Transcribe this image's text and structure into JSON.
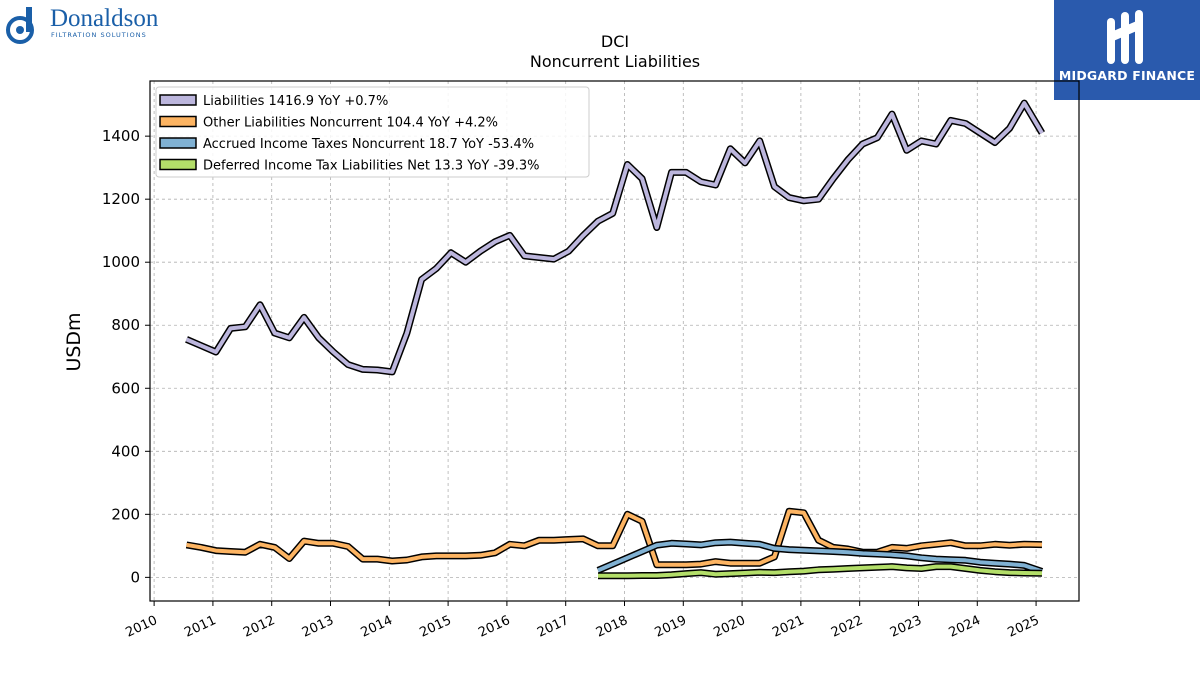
{
  "branding": {
    "left_logo_name": "Donaldson",
    "left_logo_tagline": "FILTRATION SOLUTIONS",
    "right_logo_name": "MIDGARD FINANCE",
    "left_color": "#1a5fa8",
    "right_bg": "#2a5aad"
  },
  "chart_data": {
    "type": "line",
    "title": "DCI",
    "subtitle": "Noncurrent  Liabilities",
    "ylabel": "USDm",
    "xlabel": "",
    "xlim": [
      2009.93,
      2025.73
    ],
    "ylim": [
      -75,
      1575
    ],
    "yticks": [
      0,
      200,
      400,
      600,
      800,
      1000,
      1200,
      1400
    ],
    "xticks": [
      2010,
      2011,
      2012,
      2013,
      2014,
      2015,
      2016,
      2017,
      2018,
      2019,
      2020,
      2021,
      2022,
      2023,
      2024,
      2025
    ],
    "xtick_labels": [
      "2010",
      "2011",
      "2012",
      "2013",
      "2014",
      "2015",
      "2016",
      "2017",
      "2018",
      "2019",
      "2020",
      "2021",
      "2022",
      "2023",
      "2024",
      "2025"
    ],
    "grid": true,
    "legend_position": "top-left",
    "series": [
      {
        "name": "Liabilities",
        "legend": "Liabilities  1416.9 YoY +0.7%",
        "color": "#bcb6dd",
        "x": [
          2010.55,
          2010.8,
          2011.05,
          2011.3,
          2011.55,
          2011.8,
          2012.05,
          2012.3,
          2012.55,
          2012.8,
          2013.05,
          2013.3,
          2013.55,
          2013.8,
          2014.05,
          2014.3,
          2014.55,
          2014.8,
          2015.05,
          2015.3,
          2015.55,
          2015.8,
          2016.05,
          2016.3,
          2016.55,
          2016.8,
          2017.05,
          2017.3,
          2017.55,
          2017.8,
          2018.05,
          2018.3,
          2018.55,
          2018.8,
          2019.05,
          2019.3,
          2019.55,
          2019.8,
          2020.05,
          2020.3,
          2020.55,
          2020.8,
          2021.05,
          2021.3,
          2021.55,
          2021.8,
          2022.05,
          2022.3,
          2022.55,
          2022.8,
          2023.05,
          2023.3,
          2023.55,
          2023.8,
          2024.05,
          2024.3,
          2024.55,
          2024.8,
          2025.1
        ],
        "values": [
          755,
          735,
          715,
          790,
          795,
          865,
          775,
          760,
          825,
          760,
          715,
          675,
          660,
          658,
          652,
          775,
          945,
          980,
          1030,
          1000,
          1035,
          1065,
          1085,
          1020,
          1015,
          1010,
          1035,
          1085,
          1130,
          1155,
          1310,
          1265,
          1110,
          1285,
          1285,
          1255,
          1245,
          1360,
          1315,
          1385,
          1240,
          1205,
          1195,
          1200,
          1265,
          1325,
          1375,
          1395,
          1470,
          1355,
          1385,
          1375,
          1450,
          1440,
          1410,
          1380,
          1425,
          1505,
          1410
        ]
      },
      {
        "name": "Other Liabilities Noncurrent",
        "legend": "Other Liabilities Noncurrent  104.4 YoY +4.2%",
        "color": "#fdb462",
        "x": [
          2010.55,
          2010.8,
          2011.05,
          2011.3,
          2011.55,
          2011.8,
          2012.05,
          2012.3,
          2012.55,
          2012.8,
          2013.05,
          2013.3,
          2013.55,
          2013.8,
          2014.05,
          2014.3,
          2014.55,
          2014.8,
          2015.05,
          2015.3,
          2015.55,
          2015.8,
          2016.05,
          2016.3,
          2016.55,
          2016.8,
          2017.05,
          2017.3,
          2017.55,
          2017.8,
          2018.05,
          2018.3,
          2018.55,
          2018.8,
          2019.05,
          2019.3,
          2019.55,
          2019.8,
          2020.05,
          2020.3,
          2020.55,
          2020.8,
          2021.05,
          2021.3,
          2021.55,
          2021.8,
          2022.05,
          2022.3,
          2022.55,
          2022.8,
          2023.05,
          2023.3,
          2023.55,
          2023.8,
          2024.05,
          2024.3,
          2024.55,
          2024.8,
          2025.1
        ],
        "values": [
          103,
          95,
          85,
          82,
          80,
          105,
          95,
          60,
          115,
          108,
          108,
          98,
          58,
          58,
          52,
          55,
          65,
          68,
          68,
          68,
          70,
          78,
          105,
          100,
          118,
          118,
          120,
          122,
          100,
          100,
          200,
          178,
          40,
          40,
          40,
          42,
          50,
          45,
          45,
          45,
          65,
          210,
          205,
          118,
          95,
          90,
          80,
          80,
          95,
          92,
          100,
          105,
          110,
          100,
          100,
          105,
          102,
          105,
          104
        ]
      },
      {
        "name": "Accrued Income Taxes Noncurrent",
        "legend": "Accrued Income Taxes Noncurrent  18.7 YoY -53.4%",
        "color": "#80b1d3",
        "x": [
          2017.55,
          2017.8,
          2018.05,
          2018.3,
          2018.55,
          2018.8,
          2019.05,
          2019.3,
          2019.55,
          2019.8,
          2020.05,
          2020.3,
          2020.55,
          2020.8,
          2021.05,
          2021.3,
          2021.55,
          2021.8,
          2022.05,
          2022.3,
          2022.55,
          2022.8,
          2023.05,
          2023.3,
          2023.55,
          2023.8,
          2024.05,
          2024.3,
          2024.55,
          2024.8,
          2025.1
        ],
        "values": [
          22,
          42,
          62,
          82,
          102,
          108,
          106,
          103,
          110,
          112,
          108,
          105,
          92,
          88,
          86,
          84,
          82,
          80,
          76,
          74,
          72,
          68,
          62,
          58,
          56,
          54,
          48,
          45,
          42,
          38,
          19
        ]
      },
      {
        "name": "Deferred Income Tax Liabilities Net",
        "legend": "Deferred Income Tax Liabilities Net  13.3 YoY -39.3%",
        "color": "#b3de69",
        "x": [
          2017.55,
          2017.8,
          2018.05,
          2018.3,
          2018.55,
          2018.8,
          2019.05,
          2019.3,
          2019.55,
          2019.8,
          2020.05,
          2020.3,
          2020.55,
          2020.8,
          2021.05,
          2021.3,
          2021.55,
          2021.8,
          2022.05,
          2022.3,
          2022.55,
          2022.8,
          2023.05,
          2023.3,
          2023.55,
          2023.8,
          2024.05,
          2024.3,
          2024.55,
          2024.8,
          2025.1
        ],
        "values": [
          5,
          5,
          5,
          6,
          6,
          8,
          12,
          15,
          10,
          12,
          14,
          16,
          15,
          18,
          20,
          24,
          26,
          28,
          30,
          32,
          34,
          30,
          28,
          34,
          34,
          28,
          22,
          18,
          15,
          14,
          13
        ]
      }
    ]
  }
}
